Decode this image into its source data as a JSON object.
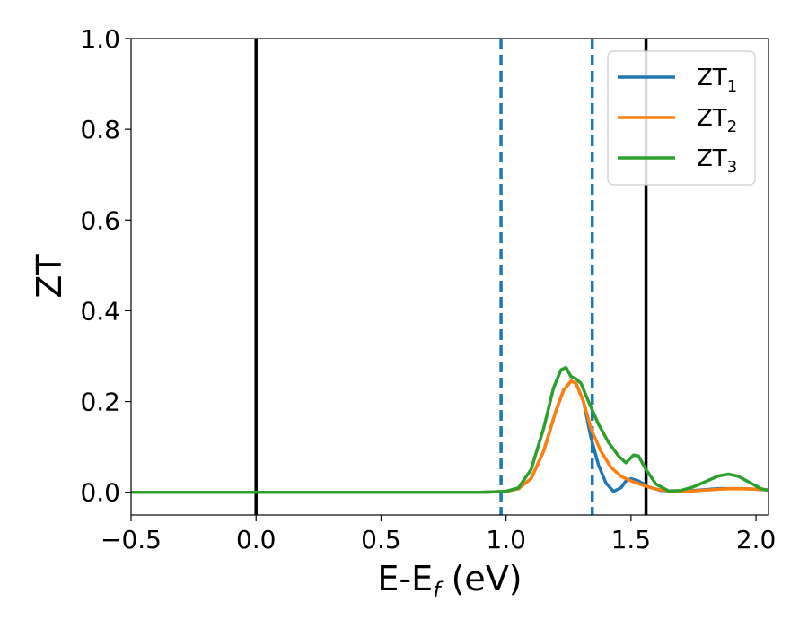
{
  "chart_data": {
    "type": "line",
    "xlabel": {
      "main": "E-E",
      "sub": "f",
      "tail": " (eV)"
    },
    "ylabel": "ZT",
    "xlim": [
      -0.5,
      2.05
    ],
    "ylim": [
      -0.05,
      1.0
    ],
    "xticks": [
      -0.5,
      0.0,
      0.5,
      1.0,
      1.5,
      2.0
    ],
    "xtick_labels": [
      "−0.5",
      "0.0",
      "0.5",
      "1.0",
      "1.5",
      "2.0"
    ],
    "yticks": [
      0.0,
      0.2,
      0.4,
      0.6,
      0.8,
      1.0
    ],
    "ytick_labels": [
      "0.0",
      "0.2",
      "0.4",
      "0.6",
      "0.8",
      "1.0"
    ],
    "grid": false,
    "legend_position": "top-right",
    "vlines": [
      {
        "x": 0.0,
        "style": "solid",
        "color": "#000000"
      },
      {
        "x": 1.56,
        "style": "solid",
        "color": "#000000"
      },
      {
        "x": 0.98,
        "style": "dashed",
        "color": "#1f77b4"
      },
      {
        "x": 1.345,
        "style": "dashed",
        "color": "#1f77b4"
      }
    ],
    "series": [
      {
        "name": "ZT",
        "name_sub": "1",
        "color": "#1f77b4",
        "points": [
          [
            -0.5,
            0.0
          ],
          [
            0.9,
            0.0
          ],
          [
            1.0,
            0.002
          ],
          [
            1.05,
            0.008
          ],
          [
            1.1,
            0.03
          ],
          [
            1.15,
            0.09
          ],
          [
            1.2,
            0.18
          ],
          [
            1.23,
            0.225
          ],
          [
            1.26,
            0.245
          ],
          [
            1.28,
            0.24
          ],
          [
            1.31,
            0.2
          ],
          [
            1.34,
            0.12
          ],
          [
            1.37,
            0.06
          ],
          [
            1.4,
            0.02
          ],
          [
            1.43,
            0.002
          ],
          [
            1.46,
            0.01
          ],
          [
            1.48,
            0.025
          ],
          [
            1.5,
            0.03
          ],
          [
            1.53,
            0.025
          ],
          [
            1.57,
            0.012
          ],
          [
            1.62,
            0.004
          ],
          [
            1.68,
            0.002
          ],
          [
            1.75,
            0.004
          ],
          [
            1.85,
            0.008
          ],
          [
            1.95,
            0.008
          ],
          [
            2.05,
            0.005
          ]
        ]
      },
      {
        "name": "ZT",
        "name_sub": "2",
        "color": "#ff7f0e",
        "points": [
          [
            -0.5,
            0.0
          ],
          [
            0.9,
            0.0
          ],
          [
            1.0,
            0.002
          ],
          [
            1.05,
            0.008
          ],
          [
            1.1,
            0.03
          ],
          [
            1.15,
            0.09
          ],
          [
            1.2,
            0.18
          ],
          [
            1.23,
            0.225
          ],
          [
            1.26,
            0.245
          ],
          [
            1.28,
            0.24
          ],
          [
            1.31,
            0.2
          ],
          [
            1.34,
            0.14
          ],
          [
            1.38,
            0.09
          ],
          [
            1.42,
            0.055
          ],
          [
            1.46,
            0.035
          ],
          [
            1.5,
            0.025
          ],
          [
            1.55,
            0.015
          ],
          [
            1.6,
            0.007
          ],
          [
            1.66,
            0.002
          ],
          [
            1.72,
            0.002
          ],
          [
            1.8,
            0.005
          ],
          [
            1.9,
            0.008
          ],
          [
            2.0,
            0.007
          ],
          [
            2.05,
            0.005
          ]
        ]
      },
      {
        "name": "ZT",
        "name_sub": "3",
        "color": "#2ca02c",
        "points": [
          [
            -0.5,
            0.0
          ],
          [
            0.9,
            0.0
          ],
          [
            1.0,
            0.002
          ],
          [
            1.05,
            0.01
          ],
          [
            1.1,
            0.05
          ],
          [
            1.15,
            0.14
          ],
          [
            1.19,
            0.23
          ],
          [
            1.22,
            0.27
          ],
          [
            1.24,
            0.275
          ],
          [
            1.26,
            0.255
          ],
          [
            1.28,
            0.25
          ],
          [
            1.3,
            0.24
          ],
          [
            1.33,
            0.2
          ],
          [
            1.37,
            0.15
          ],
          [
            1.41,
            0.11
          ],
          [
            1.45,
            0.08
          ],
          [
            1.48,
            0.065
          ],
          [
            1.51,
            0.082
          ],
          [
            1.53,
            0.08
          ],
          [
            1.56,
            0.05
          ],
          [
            1.6,
            0.018
          ],
          [
            1.65,
            0.003
          ],
          [
            1.7,
            0.004
          ],
          [
            1.75,
            0.012
          ],
          [
            1.8,
            0.024
          ],
          [
            1.85,
            0.036
          ],
          [
            1.89,
            0.04
          ],
          [
            1.93,
            0.035
          ],
          [
            1.98,
            0.02
          ],
          [
            2.02,
            0.008
          ],
          [
            2.05,
            0.004
          ]
        ]
      }
    ]
  }
}
